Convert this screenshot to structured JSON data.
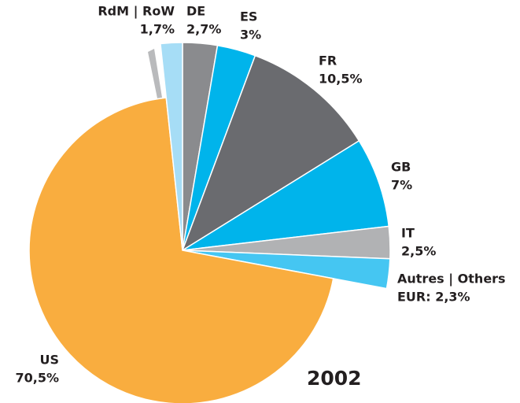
{
  "chart_data": {
    "type": "pie",
    "title": "2002",
    "categories": [
      "DE",
      "ES",
      "FR",
      "GB",
      "IT",
      "Autres | Others",
      "US",
      "RdM | RoW"
    ],
    "values": [
      2.7,
      3,
      10.5,
      7,
      2.5,
      2.3,
      70.5,
      1.7
    ],
    "value_labels": [
      "2,7%",
      "3%",
      "10,5%",
      "7%",
      "2,5%",
      "EUR: 2,3%",
      "70,5%",
      "1,7%"
    ],
    "colors": [
      "#8a8b8e",
      "#00b4eb",
      "#6a6b6f",
      "#00b4eb",
      "#b1b2b4",
      "#45c6f2",
      "#f9ad3f",
      "#a6ddf6"
    ]
  }
}
